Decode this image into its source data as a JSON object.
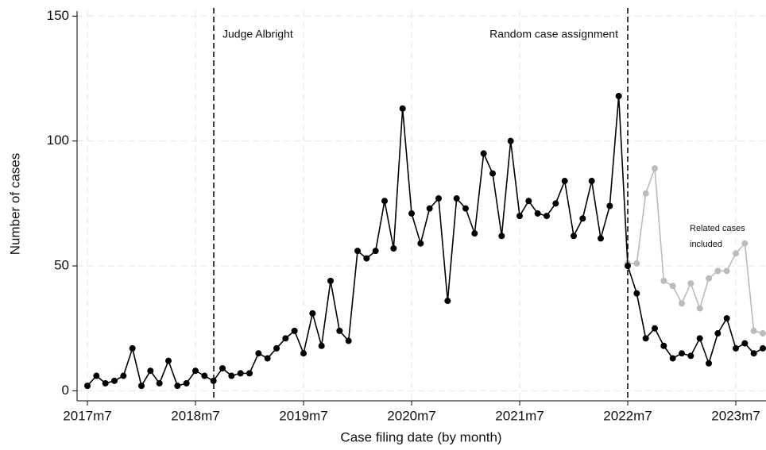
{
  "chart_data": {
    "type": "line",
    "x_label": "Case filing date (by month)",
    "y_label": "Number of cases",
    "categories": [
      "2017m7",
      null,
      null,
      null,
      null,
      null,
      null,
      null,
      null,
      null,
      null,
      null,
      "2018m7",
      null,
      null,
      null,
      null,
      null,
      null,
      null,
      null,
      null,
      null,
      null,
      "2019m7",
      null,
      null,
      null,
      null,
      null,
      null,
      null,
      null,
      null,
      null,
      null,
      "2020m7",
      null,
      null,
      null,
      null,
      null,
      null,
      null,
      null,
      null,
      null,
      null,
      "2021m7",
      null,
      null,
      null,
      null,
      null,
      null,
      null,
      null,
      null,
      null,
      null,
      "2022m7",
      null,
      null,
      null,
      null,
      null,
      null,
      null,
      null,
      null,
      null,
      null,
      "2023m7",
      null,
      null,
      null
    ],
    "series": [
      {
        "color": "#000000",
        "values": [
          2,
          6,
          3,
          4,
          6,
          17,
          2,
          8,
          3,
          12,
          2,
          3,
          8,
          6,
          4,
          9,
          6,
          7,
          7,
          15,
          13,
          17,
          21,
          24,
          15,
          31,
          18,
          44,
          24,
          20,
          56,
          53,
          56,
          76,
          57,
          113,
          71,
          59,
          73,
          77,
          36,
          77,
          73,
          63,
          95,
          87,
          62,
          100,
          70,
          76,
          71,
          70,
          75,
          84,
          62,
          69,
          84,
          61,
          74,
          118,
          50,
          39,
          21,
          25,
          18,
          13,
          15,
          14,
          21,
          11,
          23,
          29,
          17,
          19,
          15,
          17
        ]
      },
      {
        "color": "#bbbbbb",
        "values": [
          null,
          null,
          null,
          null,
          null,
          null,
          null,
          null,
          null,
          null,
          null,
          null,
          null,
          null,
          null,
          null,
          null,
          null,
          null,
          null,
          null,
          null,
          null,
          null,
          null,
          null,
          null,
          null,
          null,
          null,
          null,
          null,
          null,
          null,
          null,
          null,
          null,
          null,
          null,
          null,
          null,
          null,
          null,
          null,
          null,
          null,
          null,
          null,
          null,
          null,
          null,
          null,
          null,
          null,
          null,
          null,
          null,
          null,
          null,
          null,
          51,
          51,
          79,
          89,
          44,
          42,
          35,
          43,
          33,
          45,
          48,
          48,
          55,
          59,
          24,
          23
        ]
      }
    ],
    "annotations": [
      "Judge Albright",
      "Random case assignment"
    ],
    "side_note": [
      "Related cases",
      "included"
    ],
    "ylim": [
      -4,
      152
    ],
    "yticks": [
      0,
      50,
      100,
      150
    ],
    "grid": true
  }
}
